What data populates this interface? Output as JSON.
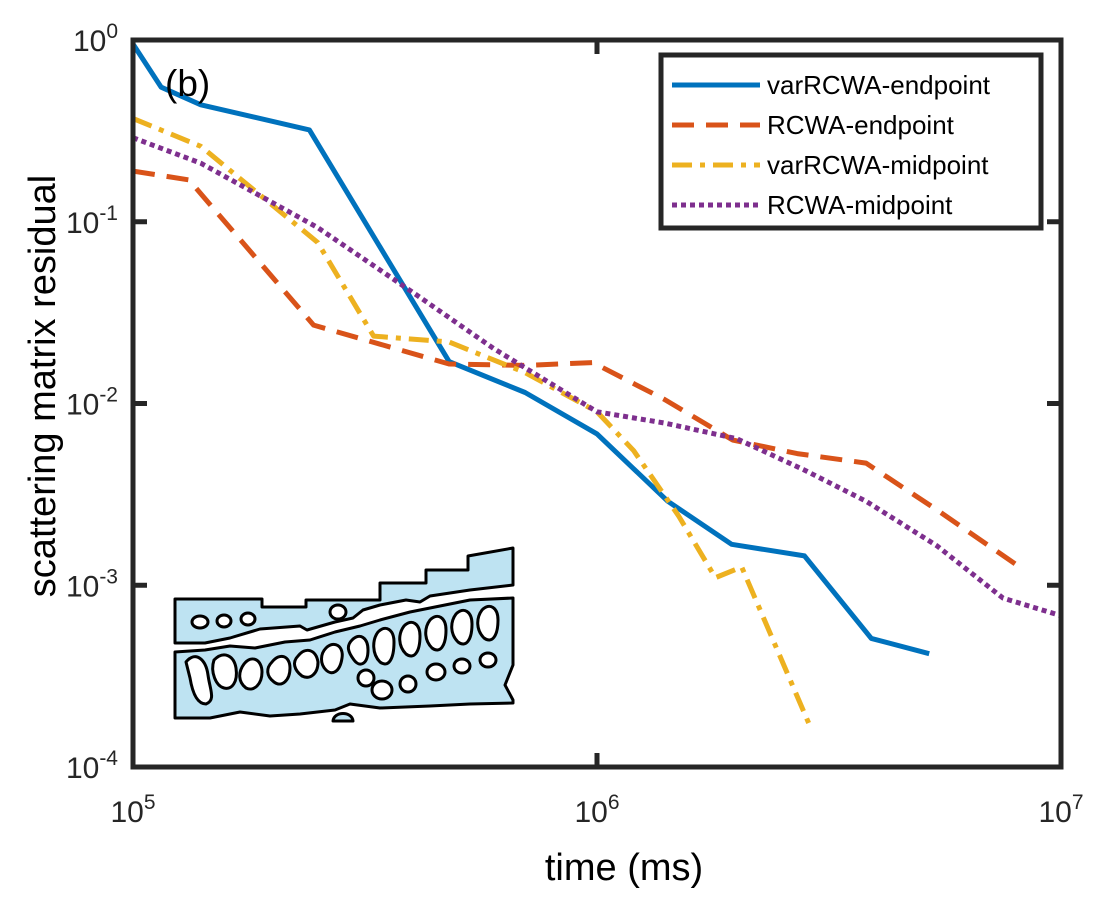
{
  "chart_data": {
    "type": "line",
    "panel_label": "(b)",
    "xlabel": "time (ms)",
    "ylabel": "scattering matrix residual",
    "xscale": "log",
    "yscale": "log",
    "xlim": [
      100000,
      10000000
    ],
    "ylim": [
      0.0001,
      1
    ],
    "xticks": [
      {
        "value": 100000,
        "base": "10",
        "exp": "5"
      },
      {
        "value": 1000000,
        "base": "10",
        "exp": "6"
      },
      {
        "value": 10000000,
        "base": "10",
        "exp": "7"
      }
    ],
    "yticks": [
      {
        "value": 0.0001,
        "base": "10",
        "exp": "-4"
      },
      {
        "value": 0.001,
        "base": "10",
        "exp": "-3"
      },
      {
        "value": 0.01,
        "base": "10",
        "exp": "-2"
      },
      {
        "value": 0.1,
        "base": "10",
        "exp": "-1"
      },
      {
        "value": 1,
        "base": "10",
        "exp": "0"
      }
    ],
    "grid": false,
    "legend_position": "top-right",
    "series": [
      {
        "name": "varRCWA-endpoint",
        "color": "#0072BD",
        "style": "solid",
        "points": [
          [
            100000,
            0.95
          ],
          [
            115000,
            0.55
          ],
          [
            140000,
            0.44
          ],
          [
            240000,
            0.32
          ],
          [
            480000,
            0.017
          ],
          [
            700000,
            0.0115
          ],
          [
            1000000,
            0.0068
          ],
          [
            1420000,
            0.0029
          ],
          [
            1950000,
            0.00168
          ],
          [
            2800000,
            0.00145
          ],
          [
            3900000,
            0.00051
          ],
          [
            5200000,
            0.00042
          ]
        ]
      },
      {
        "name": "RCWA-endpoint",
        "color": "#D95319",
        "style": "dashed",
        "points": [
          [
            100000,
            0.19
          ],
          [
            132000,
            0.17
          ],
          [
            245000,
            0.027
          ],
          [
            480000,
            0.0165
          ],
          [
            700000,
            0.0162
          ],
          [
            980000,
            0.0168
          ],
          [
            1400000,
            0.0105
          ],
          [
            1960000,
            0.0063
          ],
          [
            2700000,
            0.0053
          ],
          [
            3800000,
            0.0047
          ],
          [
            5400000,
            0.0026
          ],
          [
            8000000,
            0.0013
          ]
        ]
      },
      {
        "name": "varRCWA-midpoint",
        "color": "#EDB120",
        "style": "dashdot",
        "points": [
          [
            100000,
            0.37
          ],
          [
            140000,
            0.26
          ],
          [
            250000,
            0.077
          ],
          [
            330000,
            0.0235
          ],
          [
            480000,
            0.0218
          ],
          [
            700000,
            0.0148
          ],
          [
            1000000,
            0.009
          ],
          [
            1200000,
            0.0055
          ],
          [
            1500000,
            0.0024
          ],
          [
            1800000,
            0.0011
          ],
          [
            2050000,
            0.00126
          ],
          [
            2900000,
            0.00016
          ]
        ]
      },
      {
        "name": "RCWA-midpoint",
        "color": "#7E2F8E",
        "style": "dotted",
        "points": [
          [
            100000,
            0.29
          ],
          [
            140000,
            0.21
          ],
          [
            250000,
            0.093
          ],
          [
            400000,
            0.041
          ],
          [
            600000,
            0.02
          ],
          [
            1000000,
            0.009
          ],
          [
            1400000,
            0.0078
          ],
          [
            2000000,
            0.0064
          ],
          [
            2800000,
            0.0043
          ],
          [
            3800000,
            0.0029
          ],
          [
            5400000,
            0.00165
          ],
          [
            7500000,
            0.00085
          ],
          [
            10000000,
            0.00068
          ]
        ]
      }
    ]
  }
}
